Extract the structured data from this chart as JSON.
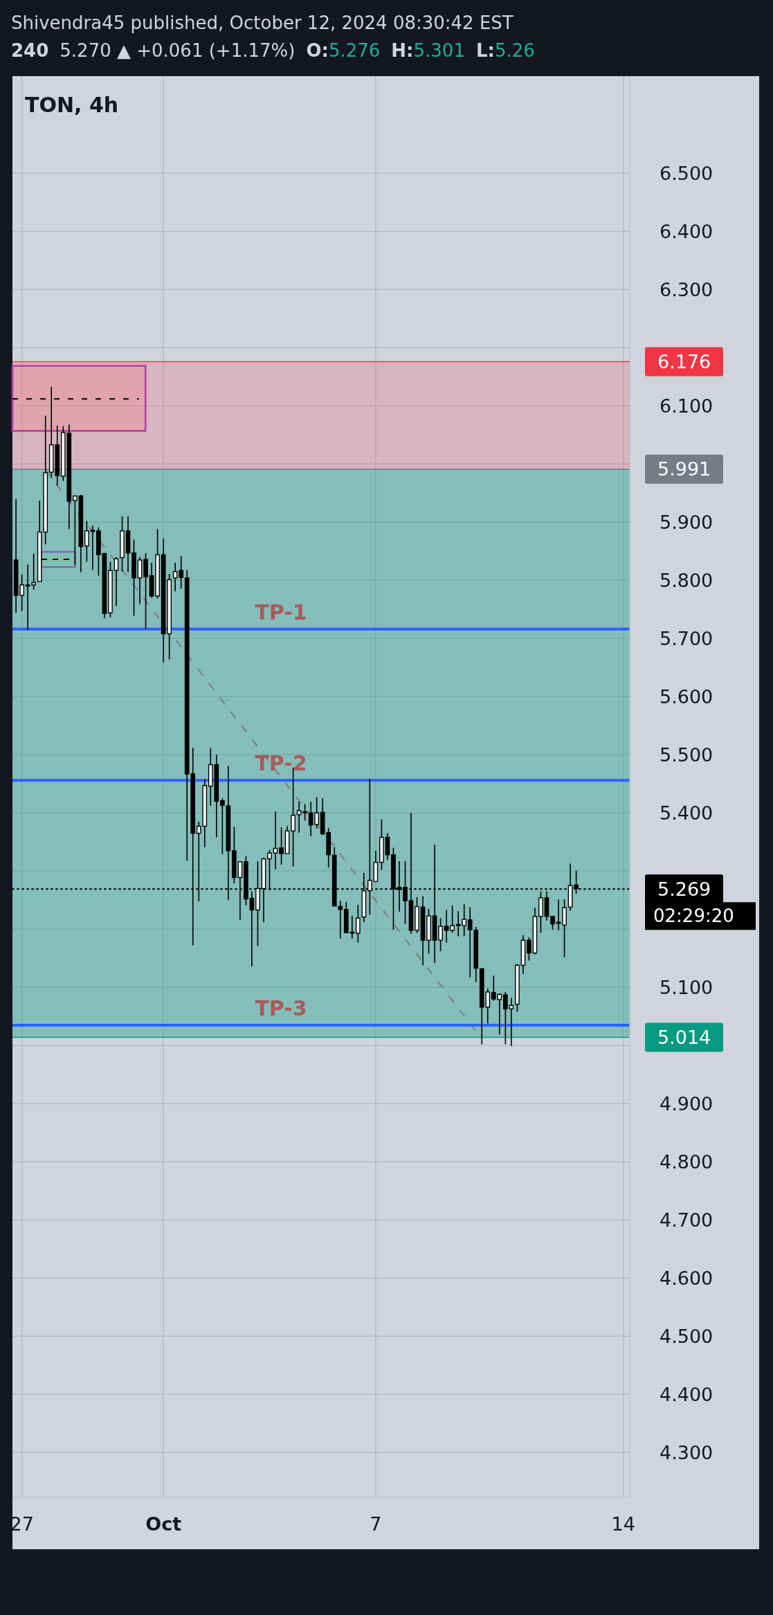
{
  "chart_data": {
    "type": "candlestick",
    "title": "TON, 4h",
    "annotations": [
      "Shivendra45 published, October 12, 2024 08:30:42 EST",
      "240",
      "5.270 ▲ +0.061 (+1.17%)",
      "O:5.276",
      "H:5.301",
      "L:5.26",
      "02:29:20"
    ],
    "x": [
      "2024-09-26T20:00",
      "2024-09-27T00:00",
      "2024-09-27T04:00",
      "2024-09-27T08:00",
      "2024-09-27T12:00",
      "2024-09-27T16:00",
      "2024-09-27T20:00",
      "2024-09-28T00:00",
      "2024-09-28T04:00",
      "2024-09-28T08:00",
      "2024-09-28T12:00",
      "2024-09-28T16:00",
      "2024-09-28T20:00",
      "2024-09-29T00:00",
      "2024-09-29T04:00",
      "2024-09-29T08:00",
      "2024-09-29T12:00",
      "2024-09-29T16:00",
      "2024-09-29T20:00",
      "2024-09-30T00:00",
      "2024-09-30T04:00",
      "2024-09-30T08:00",
      "2024-09-30T12:00",
      "2024-09-30T16:00",
      "2024-09-30T20:00",
      "2024-10-01T00:00",
      "2024-10-01T04:00",
      "2024-10-01T08:00",
      "2024-10-01T12:00",
      "2024-10-01T16:00",
      "2024-10-01T20:00",
      "2024-10-02T00:00",
      "2024-10-02T04:00",
      "2024-10-02T08:00",
      "2024-10-02T12:00",
      "2024-10-02T16:00",
      "2024-10-02T20:00",
      "2024-10-03T00:00",
      "2024-10-03T04:00",
      "2024-10-03T08:00",
      "2024-10-03T12:00",
      "2024-10-03T16:00",
      "2024-10-03T20:00",
      "2024-10-04T00:00",
      "2024-10-04T04:00",
      "2024-10-04T08:00",
      "2024-10-04T12:00",
      "2024-10-04T16:00",
      "2024-10-04T20:00",
      "2024-10-05T00:00",
      "2024-10-05T04:00",
      "2024-10-05T08:00",
      "2024-10-05T12:00",
      "2024-10-05T16:00",
      "2024-10-05T20:00",
      "2024-10-06T00:00",
      "2024-10-06T04:00",
      "2024-10-06T08:00",
      "2024-10-06T12:00",
      "2024-10-06T16:00",
      "2024-10-06T20:00",
      "2024-10-07T00:00",
      "2024-10-07T04:00",
      "2024-10-07T08:00",
      "2024-10-07T12:00",
      "2024-10-07T16:00",
      "2024-10-07T20:00",
      "2024-10-08T00:00",
      "2024-10-08T04:00",
      "2024-10-08T08:00",
      "2024-10-08T12:00",
      "2024-10-08T16:00",
      "2024-10-08T20:00",
      "2024-10-09T00:00",
      "2024-10-09T04:00",
      "2024-10-09T08:00",
      "2024-10-09T12:00",
      "2024-10-09T16:00",
      "2024-10-09T20:00",
      "2024-10-10T00:00",
      "2024-10-10T04:00",
      "2024-10-10T08:00",
      "2024-10-10T12:00",
      "2024-10-10T16:00",
      "2024-10-10T20:00",
      "2024-10-11T00:00",
      "2024-10-11T04:00",
      "2024-10-11T08:00",
      "2024-10-11T12:00",
      "2024-10-11T16:00",
      "2024-10-11T20:00",
      "2024-10-12T00:00",
      "2024-10-12T04:00",
      "2024-10-12T08:00",
      "2024-10-12T12:00",
      "2024-10-12T16:00"
    ],
    "ohlc": [
      [
        5.835,
        5.94,
        5.744,
        5.774
      ],
      [
        5.774,
        5.81,
        5.747,
        5.792
      ],
      [
        5.791,
        5.827,
        5.715,
        5.792
      ],
      [
        5.792,
        5.846,
        5.784,
        5.796
      ],
      [
        5.798,
        5.937,
        5.798,
        5.883
      ],
      [
        5.883,
        6.083,
        5.862,
        5.985
      ],
      [
        5.986,
        6.133,
        5.976,
        6.033
      ],
      [
        6.033,
        6.066,
        5.963,
        5.98
      ],
      [
        5.979,
        6.065,
        5.971,
        6.054
      ],
      [
        6.053,
        6.068,
        5.888,
        5.936
      ],
      [
        5.937,
        5.945,
        5.826,
        5.945
      ],
      [
        5.945,
        5.947,
        5.814,
        5.858
      ],
      [
        5.859,
        5.902,
        5.832,
        5.885
      ],
      [
        5.886,
        5.894,
        5.818,
        5.885
      ],
      [
        5.885,
        5.891,
        5.808,
        5.844
      ],
      [
        5.846,
        5.847,
        5.735,
        5.743
      ],
      [
        5.744,
        5.832,
        5.736,
        5.817
      ],
      [
        5.817,
        5.84,
        5.756,
        5.837
      ],
      [
        5.839,
        5.91,
        5.815,
        5.885
      ],
      [
        5.885,
        5.91,
        5.814,
        5.847
      ],
      [
        5.847,
        5.87,
        5.739,
        5.804
      ],
      [
        5.804,
        5.84,
        5.759,
        5.835
      ],
      [
        5.836,
        5.847,
        5.716,
        5.806
      ],
      [
        5.808,
        5.83,
        5.77,
        5.773
      ],
      [
        5.773,
        5.888,
        5.769,
        5.844
      ],
      [
        5.844,
        5.872,
        5.659,
        5.708
      ],
      [
        5.708,
        5.811,
        5.664,
        5.801
      ],
      [
        5.804,
        5.83,
        5.781,
        5.815
      ],
      [
        5.817,
        5.842,
        5.786,
        5.805
      ],
      [
        5.804,
        5.818,
        5.318,
        5.467
      ],
      [
        5.467,
        5.512,
        5.172,
        5.365
      ],
      [
        5.365,
        5.385,
        5.248,
        5.377
      ],
      [
        5.377,
        5.458,
        5.341,
        5.447
      ],
      [
        5.446,
        5.512,
        5.412,
        5.483
      ],
      [
        5.483,
        5.5,
        5.358,
        5.42
      ],
      [
        5.421,
        5.425,
        5.329,
        5.413
      ],
      [
        5.412,
        5.481,
        5.25,
        5.335
      ],
      [
        5.335,
        5.376,
        5.279,
        5.289
      ],
      [
        5.289,
        5.317,
        5.216,
        5.316
      ],
      [
        5.316,
        5.326,
        5.241,
        5.252
      ],
      [
        5.253,
        5.265,
        5.136,
        5.233
      ],
      [
        5.233,
        5.317,
        5.171,
        5.27
      ],
      [
        5.27,
        5.323,
        5.212,
        5.321
      ],
      [
        5.321,
        5.336,
        5.267,
        5.331
      ],
      [
        5.331,
        5.402,
        5.303,
        5.339
      ],
      [
        5.34,
        5.375,
        5.311,
        5.33
      ],
      [
        5.33,
        5.377,
        5.33,
        5.369
      ],
      [
        5.369,
        5.478,
        5.308,
        5.396
      ],
      [
        5.397,
        5.419,
        5.366,
        5.404
      ],
      [
        5.402,
        5.415,
        5.387,
        5.401
      ],
      [
        5.4,
        5.419,
        5.36,
        5.379
      ],
      [
        5.38,
        5.427,
        5.373,
        5.4
      ],
      [
        5.401,
        5.425,
        5.362,
        5.364
      ],
      [
        5.366,
        5.374,
        5.306,
        5.328
      ],
      [
        5.327,
        5.341,
        5.24,
        5.24
      ],
      [
        5.239,
        5.249,
        5.184,
        5.234
      ],
      [
        5.234,
        5.247,
        5.194,
        5.194
      ],
      [
        5.195,
        5.223,
        5.184,
        5.194
      ],
      [
        5.193,
        5.242,
        5.177,
        5.219
      ],
      [
        5.221,
        5.297,
        5.212,
        5.266
      ],
      [
        5.266,
        5.459,
        5.225,
        5.284
      ],
      [
        5.282,
        5.335,
        5.281,
        5.315
      ],
      [
        5.315,
        5.389,
        5.302,
        5.358
      ],
      [
        5.358,
        5.365,
        5.319,
        5.328
      ],
      [
        5.328,
        5.34,
        5.199,
        5.269
      ],
      [
        5.272,
        5.317,
        5.23,
        5.268
      ],
      [
        5.272,
        5.317,
        5.209,
        5.249
      ],
      [
        5.249,
        5.4,
        5.192,
        5.198
      ],
      [
        5.198,
        5.255,
        5.194,
        5.239
      ],
      [
        5.238,
        5.257,
        5.138,
        5.181
      ],
      [
        5.181,
        5.235,
        5.158,
        5.223
      ],
      [
        5.223,
        5.345,
        5.142,
        5.181
      ],
      [
        5.181,
        5.219,
        5.162,
        5.205
      ],
      [
        5.205,
        5.233,
        5.177,
        5.198
      ],
      [
        5.198,
        5.241,
        5.194,
        5.206
      ],
      [
        5.208,
        5.231,
        5.188,
        5.207
      ],
      [
        5.206,
        5.243,
        5.188,
        5.217
      ],
      [
        5.216,
        5.238,
        5.117,
        5.199
      ],
      [
        5.198,
        5.204,
        5.109,
        5.133
      ],
      [
        5.132,
        5.132,
        5.002,
        5.066
      ],
      [
        5.066,
        5.098,
        5.038,
        5.092
      ],
      [
        5.091,
        5.12,
        5.077,
        5.08
      ],
      [
        5.079,
        5.089,
        5.019,
        5.088
      ],
      [
        5.087,
        5.092,
        5.002,
        5.063
      ],
      [
        5.063,
        5.082,
        4.999,
        5.069
      ],
      [
        5.071,
        5.14,
        5.058,
        5.138
      ],
      [
        5.138,
        5.19,
        5.123,
        5.181
      ],
      [
        5.181,
        5.186,
        5.146,
        5.159
      ],
      [
        5.159,
        5.237,
        5.157,
        5.222
      ],
      [
        5.222,
        5.265,
        5.194,
        5.254
      ],
      [
        5.254,
        5.265,
        5.215,
        5.222
      ],
      [
        5.222,
        5.222,
        5.199,
        5.209
      ],
      [
        5.211,
        5.251,
        5.198,
        5.212
      ],
      [
        5.207,
        5.251,
        5.152,
        5.237
      ],
      [
        5.238,
        5.313,
        5.232,
        5.275
      ],
      [
        5.276,
        5.301,
        5.261,
        5.27
      ]
    ],
    "xlim": [
      "2024-09-26T17:36",
      "2024-10-14T04:20"
    ],
    "xticks": [
      {
        "value": "2024-09-27",
        "label": "27"
      },
      {
        "value": "2024-10-01",
        "label": "Oct"
      },
      {
        "value": "2024-10-07",
        "label": "7"
      },
      {
        "value": "2024-10-14",
        "label": "14"
      }
    ],
    "ylim": [
      4.223,
      6.667
    ],
    "yticks": [
      {
        "value": 4.3,
        "label": "4.300"
      },
      {
        "value": 4.4,
        "label": "4.400"
      },
      {
        "value": 4.5,
        "label": "4.500"
      },
      {
        "value": 4.6,
        "label": "4.600"
      },
      {
        "value": 4.7,
        "label": "4.700"
      },
      {
        "value": 4.8,
        "label": "4.800"
      },
      {
        "value": 4.9,
        "label": "4.900"
      },
      {
        "value": 5.0,
        "label": null
      },
      {
        "value": 5.1,
        "label": "5.100"
      },
      {
        "value": 5.2,
        "label": null
      },
      {
        "value": 5.3,
        "label": null
      },
      {
        "value": 5.4,
        "label": "5.400"
      },
      {
        "value": 5.5,
        "label": "5.500"
      },
      {
        "value": 5.6,
        "label": "5.600"
      },
      {
        "value": 5.7,
        "label": "5.700"
      },
      {
        "value": 5.8,
        "label": "5.800"
      },
      {
        "value": 5.9,
        "label": "5.900"
      },
      {
        "value": 6.0,
        "label": null
      },
      {
        "value": 6.1,
        "label": "6.100"
      },
      {
        "value": 6.2,
        "label": null
      },
      {
        "value": 6.3,
        "label": "6.300"
      },
      {
        "value": 6.4,
        "label": "6.400"
      },
      {
        "value": 6.5,
        "label": "6.500"
      }
    ],
    "bands": [
      {
        "axis": "y",
        "from": 5.991,
        "to": 6.176,
        "color": "#f23645"
      },
      {
        "axis": "y",
        "from": 5.014,
        "to": 5.991,
        "color": "#089981"
      }
    ],
    "ref_lines": [
      {
        "axis": "y",
        "value": 6.176,
        "label": "6.176",
        "color": "#f23645",
        "line_style": "solid"
      },
      {
        "axis": "y",
        "value": 5.991,
        "label": "5.991",
        "color": "#787b86",
        "line_style": "solid"
      },
      {
        "axis": "y",
        "value": 5.014,
        "label": "5.014",
        "color": "#089981",
        "line_style": "solid"
      },
      {
        "axis": "y",
        "value": 5.716,
        "label": "TP-1",
        "color": "#2962ff",
        "line_style": "solid"
      },
      {
        "axis": "y",
        "value": 5.456,
        "label": "TP-2",
        "color": "#2962ff",
        "line_style": "solid"
      },
      {
        "axis": "y",
        "value": 5.035,
        "label": "TP-3",
        "color": "#2962ff",
        "line_style": "solid"
      },
      {
        "axis": "y",
        "value": 5.269,
        "label": "5.269",
        "color": "#000000",
        "line_style": "dotted"
      }
    ],
    "grid": true
  }
}
